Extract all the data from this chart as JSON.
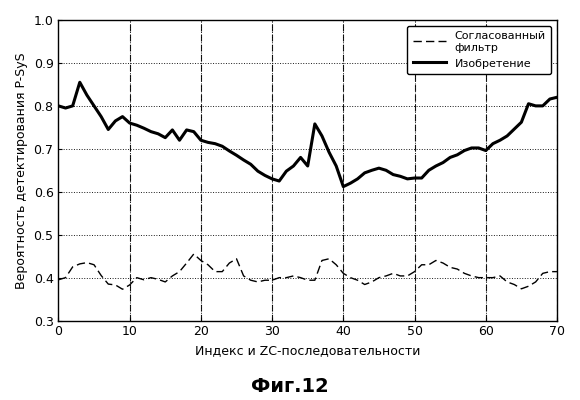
{
  "title": "Фиг.12",
  "xlabel": "Индекс и ZC-последовательности",
  "ylabel": "Вероятность детектирования P-SyS",
  "xlim": [
    0,
    70
  ],
  "ylim": [
    0.3,
    1.0
  ],
  "yticks": [
    0.3,
    0.4,
    0.5,
    0.6,
    0.7,
    0.8,
    0.9,
    1.0
  ],
  "xticks": [
    0,
    10,
    20,
    30,
    40,
    50,
    60,
    70
  ],
  "legend_line1": "Согласованный\nфильтр",
  "legend_line2": "Изобретение",
  "invention_x": [
    0,
    1,
    2,
    3,
    4,
    5,
    6,
    7,
    8,
    9,
    10,
    11,
    12,
    13,
    14,
    15,
    16,
    17,
    18,
    19,
    20,
    21,
    22,
    23,
    24,
    25,
    26,
    27,
    28,
    29,
    30,
    31,
    32,
    33,
    34,
    35,
    36,
    37,
    38,
    39,
    40,
    41,
    42,
    43,
    44,
    45,
    46,
    47,
    48,
    49,
    50,
    51,
    52,
    53,
    54,
    55,
    56,
    57,
    58,
    59,
    60,
    61,
    62,
    63,
    64,
    65,
    66,
    67,
    68,
    69,
    70
  ],
  "invention_y": [
    0.8,
    0.795,
    0.8,
    0.855,
    0.825,
    0.8,
    0.775,
    0.745,
    0.765,
    0.775,
    0.76,
    0.755,
    0.748,
    0.74,
    0.735,
    0.726,
    0.744,
    0.72,
    0.744,
    0.74,
    0.72,
    0.715,
    0.712,
    0.706,
    0.695,
    0.685,
    0.674,
    0.664,
    0.648,
    0.638,
    0.63,
    0.625,
    0.648,
    0.66,
    0.68,
    0.66,
    0.758,
    0.73,
    0.692,
    0.66,
    0.612,
    0.62,
    0.63,
    0.644,
    0.65,
    0.655,
    0.65,
    0.64,
    0.636,
    0.63,
    0.632,
    0.632,
    0.65,
    0.66,
    0.668,
    0.68,
    0.686,
    0.696,
    0.702,
    0.702,
    0.696,
    0.712,
    0.72,
    0.73,
    0.746,
    0.762,
    0.805,
    0.8,
    0.8,
    0.816,
    0.82
  ],
  "matched_x": [
    0,
    1,
    2,
    3,
    4,
    5,
    6,
    7,
    8,
    9,
    10,
    11,
    12,
    13,
    14,
    15,
    16,
    17,
    18,
    19,
    20,
    21,
    22,
    23,
    24,
    25,
    26,
    27,
    28,
    29,
    30,
    31,
    32,
    33,
    34,
    35,
    36,
    37,
    38,
    39,
    40,
    41,
    42,
    43,
    44,
    45,
    46,
    47,
    48,
    49,
    50,
    51,
    52,
    53,
    54,
    55,
    56,
    57,
    58,
    59,
    60,
    61,
    62,
    63,
    64,
    65,
    66,
    67,
    68,
    69,
    70
  ],
  "matched_y": [
    0.395,
    0.4,
    0.425,
    0.432,
    0.435,
    0.43,
    0.405,
    0.385,
    0.383,
    0.373,
    0.383,
    0.4,
    0.395,
    0.4,
    0.396,
    0.39,
    0.404,
    0.414,
    0.434,
    0.455,
    0.44,
    0.43,
    0.414,
    0.414,
    0.434,
    0.444,
    0.404,
    0.394,
    0.39,
    0.394,
    0.394,
    0.4,
    0.4,
    0.404,
    0.4,
    0.394,
    0.394,
    0.44,
    0.444,
    0.43,
    0.41,
    0.4,
    0.394,
    0.384,
    0.39,
    0.4,
    0.404,
    0.41,
    0.404,
    0.404,
    0.414,
    0.43,
    0.43,
    0.44,
    0.434,
    0.424,
    0.42,
    0.41,
    0.404,
    0.4,
    0.4,
    0.4,
    0.404,
    0.39,
    0.384,
    0.374,
    0.38,
    0.39,
    0.41,
    0.414,
    0.414
  ]
}
